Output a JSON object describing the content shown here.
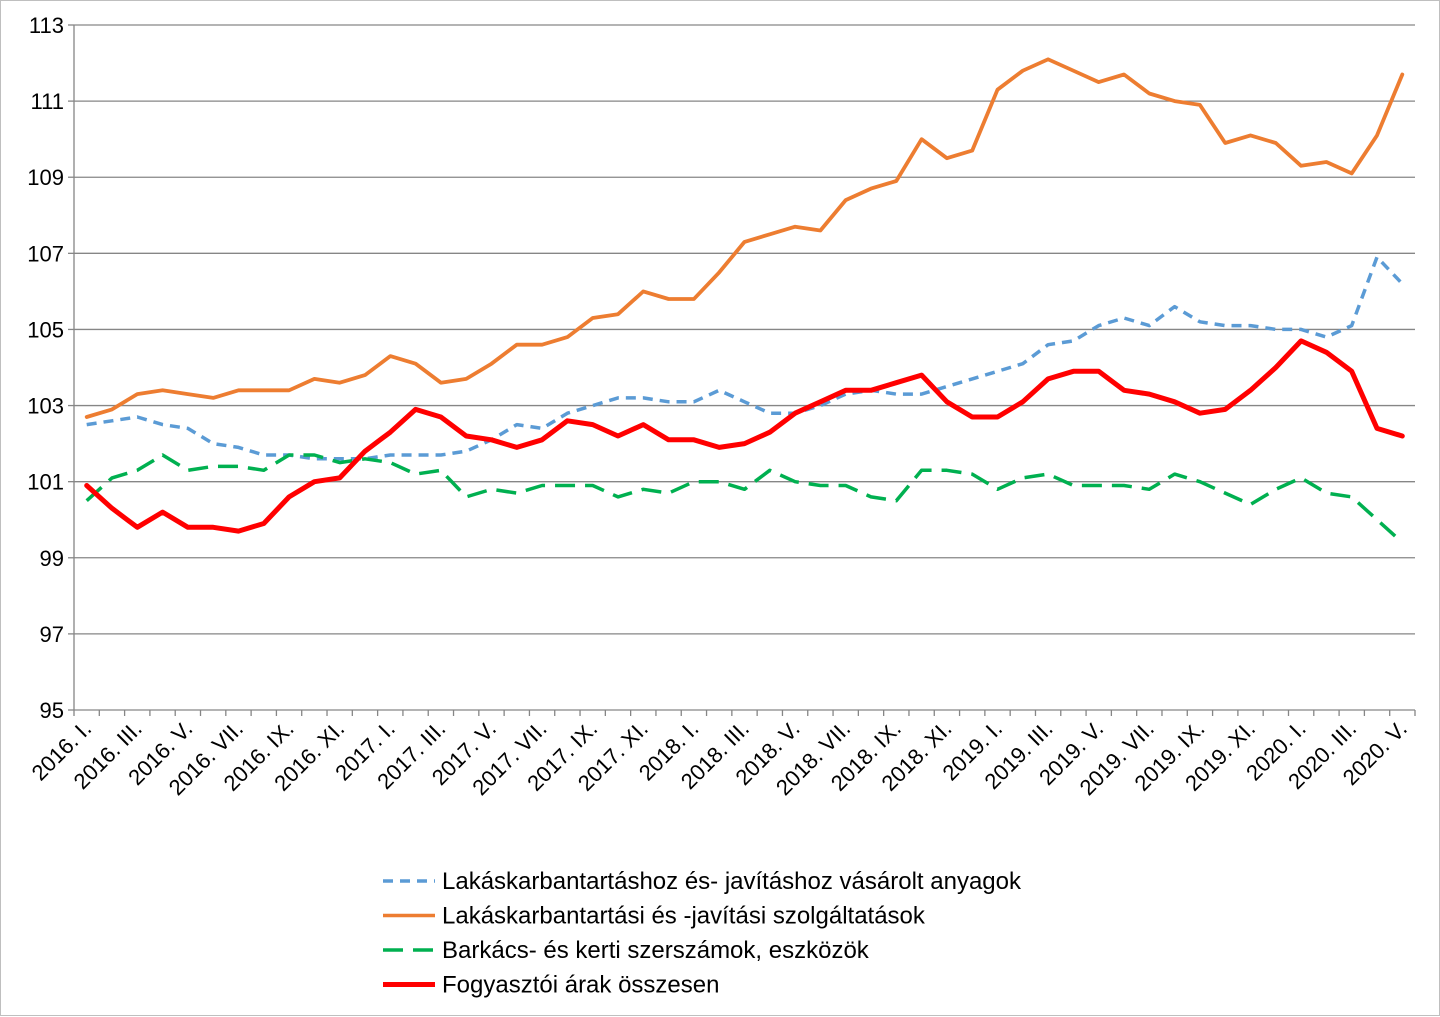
{
  "chart_data": {
    "type": "line",
    "title": "",
    "xlabel": "",
    "ylabel": "",
    "ylim": [
      95,
      113
    ],
    "yticks": [
      95,
      97,
      99,
      101,
      103,
      105,
      107,
      109,
      111,
      113
    ],
    "grid": "horizontal",
    "legend_position": "bottom",
    "x": [
      "2016. I.",
      "2016. II.",
      "2016. III.",
      "2016. IV.",
      "2016. V.",
      "2016. VI.",
      "2016. VII.",
      "2016. VIII.",
      "2016. IX.",
      "2016. X.",
      "2016. XI.",
      "2016. XII.",
      "2017. I.",
      "2017. II.",
      "2017. III.",
      "2017. IV.",
      "2017. V.",
      "2017. VI.",
      "2017. VII.",
      "2017. VIII.",
      "2017. IX.",
      "2017. X.",
      "2017. XI.",
      "2017. XII.",
      "2018. I.",
      "2018. II.",
      "2018. III.",
      "2018. IV.",
      "2018. V.",
      "2018. VI.",
      "2018. VII.",
      "2018. VIII.",
      "2018. IX.",
      "2018. X.",
      "2018. XI.",
      "2018. XII.",
      "2019. I.",
      "2019. II.",
      "2019. III.",
      "2019. IV.",
      "2019. V.",
      "2019. VI.",
      "2019. VII.",
      "2019. VIII.",
      "2019. IX.",
      "2019. X.",
      "2019. XI.",
      "2019. XII.",
      "2020. I.",
      "2020. II.",
      "2020. III.",
      "2020. IV.",
      "2020. V."
    ],
    "xtick_labels": [
      "2016. I.",
      "2016. III.",
      "2016. V.",
      "2016. VII.",
      "2016. IX.",
      "2016. XI.",
      "2017. I.",
      "2017. III.",
      "2017. V.",
      "2017. VII.",
      "2017. IX.",
      "2017. XI.",
      "2018. I.",
      "2018. III.",
      "2018. V.",
      "2018. VII.",
      "2018. IX.",
      "2018. XI.",
      "2019. I.",
      "2019. III.",
      "2019. V.",
      "2019. VII.",
      "2019. IX.",
      "2019. XI.",
      "2020. I.",
      "2020. III.",
      "2020. V."
    ],
    "series": [
      {
        "name": "Lakáskarbantartáshoz és- javításhoz vásárolt anyagok",
        "color": "#5b9bd5",
        "style": "dashed",
        "values": [
          102.5,
          102.6,
          102.7,
          102.5,
          102.4,
          102.0,
          101.9,
          101.7,
          101.7,
          101.6,
          101.6,
          101.6,
          101.7,
          101.7,
          101.7,
          101.8,
          102.1,
          102.5,
          102.4,
          102.8,
          103.0,
          103.2,
          103.2,
          103.1,
          103.1,
          103.4,
          103.1,
          102.8,
          102.8,
          103.0,
          103.3,
          103.4,
          103.3,
          103.3,
          103.5,
          103.7,
          103.9,
          104.1,
          104.6,
          104.7,
          105.1,
          105.3,
          105.1,
          105.6,
          105.2,
          105.1,
          105.1,
          105.0,
          105.0,
          104.8,
          105.1,
          106.9,
          106.2
        ]
      },
      {
        "name": "Lakáskarbantartási és -javítási szolgáltatások",
        "color": "#ed7d31",
        "style": "solid",
        "values": [
          102.7,
          102.9,
          103.3,
          103.4,
          103.3,
          103.2,
          103.4,
          103.4,
          103.4,
          103.7,
          103.6,
          103.8,
          104.3,
          104.1,
          103.6,
          103.7,
          104.1,
          104.6,
          104.6,
          104.8,
          105.3,
          105.4,
          106.0,
          105.8,
          105.8,
          106.5,
          107.3,
          107.5,
          107.7,
          107.6,
          108.4,
          108.7,
          108.9,
          110.0,
          109.5,
          109.7,
          111.3,
          111.8,
          112.1,
          111.8,
          111.5,
          111.7,
          111.2,
          111.0,
          110.9,
          109.9,
          110.1,
          109.9,
          109.3,
          109.4,
          109.1,
          110.1,
          111.7
        ]
      },
      {
        "name": "Barkács- és kerti szerszámok, eszközök",
        "color": "#00b050",
        "style": "dashed",
        "values": [
          100.5,
          101.1,
          101.3,
          101.7,
          101.3,
          101.4,
          101.4,
          101.3,
          101.7,
          101.7,
          101.5,
          101.6,
          101.5,
          101.2,
          101.3,
          100.6,
          100.8,
          100.7,
          100.9,
          100.9,
          100.9,
          100.6,
          100.8,
          100.7,
          101.0,
          101.0,
          100.8,
          101.3,
          101.0,
          100.9,
          100.9,
          100.6,
          100.5,
          101.3,
          101.3,
          101.2,
          100.8,
          101.1,
          101.2,
          100.9,
          100.9,
          100.9,
          100.8,
          101.2,
          101.0,
          100.7,
          100.4,
          100.8,
          101.1,
          100.7,
          100.6,
          100.0,
          99.4
        ]
      },
      {
        "name": "Fogyasztói árak összesen",
        "color": "#ff0000",
        "style": "solid",
        "values": [
          100.9,
          100.3,
          99.8,
          100.2,
          99.8,
          99.8,
          99.7,
          99.9,
          100.6,
          101.0,
          101.1,
          101.8,
          102.3,
          102.9,
          102.7,
          102.2,
          102.1,
          101.9,
          102.1,
          102.6,
          102.5,
          102.2,
          102.5,
          102.1,
          102.1,
          101.9,
          102.0,
          102.3,
          102.8,
          103.1,
          103.4,
          103.4,
          103.6,
          103.8,
          103.1,
          102.7,
          102.7,
          103.1,
          103.7,
          103.9,
          103.9,
          103.4,
          103.3,
          103.1,
          102.8,
          102.9,
          103.4,
          104.0,
          104.7,
          104.4,
          103.9,
          102.4,
          102.2
        ]
      }
    ]
  }
}
